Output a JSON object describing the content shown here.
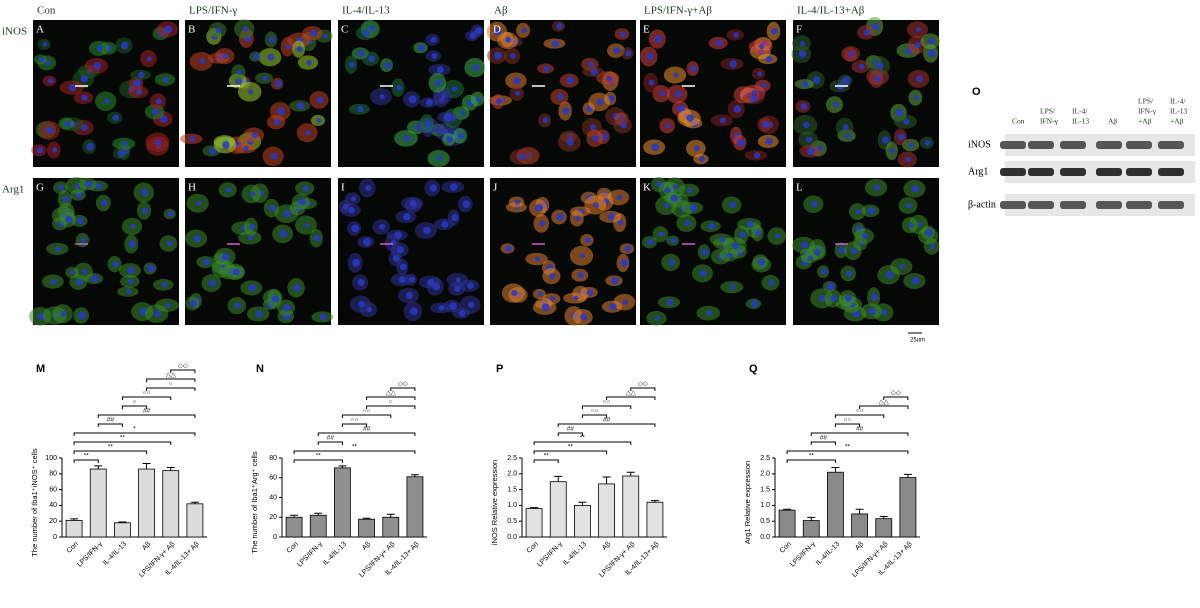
{
  "figure": {
    "columns": [
      "Con",
      "LPS/IFN-γ",
      "IL-4/IL-13",
      "Aβ",
      "LPS/IFN-γ+Aβ",
      "IL-4/IL-13+Aβ"
    ],
    "rows": [
      "iNOS",
      "Arg1"
    ],
    "panel_letters": [
      "A",
      "B",
      "C",
      "D",
      "E",
      "F",
      "G",
      "H",
      "I",
      "J",
      "K",
      "L"
    ],
    "blot": {
      "letter": "O",
      "lanes": [
        [
          "Con"
        ],
        [
          "LPS/",
          "IFN-γ"
        ],
        [
          "IL-4/",
          "IL-13"
        ],
        [
          "Aβ"
        ],
        [
          "LPS/",
          "IFN-γ",
          "+Aβ"
        ],
        [
          "IL-4/",
          "IL-13",
          "+Aβ"
        ]
      ],
      "rows": [
        "iNOS",
        "Arg1",
        "β-actin"
      ]
    },
    "scale_bar": "25um"
  },
  "chart_data": [
    {
      "type": "bar",
      "letter": "M",
      "ylabel": "The number of Iba1⁺iNOS⁺ cells",
      "categories": [
        "Con",
        "LPS/IFN-γ",
        "IL-4/IL-13",
        "Aβ",
        "LPS/IFN-γ+ Aβ",
        "IL-4/IL-13+ Aβ"
      ],
      "values": [
        21,
        86,
        18,
        86,
        84,
        42
      ],
      "errors": [
        2,
        4,
        1,
        7,
        4,
        2
      ],
      "ylim": [
        0,
        100
      ],
      "yticks": [
        0,
        20,
        40,
        60,
        80,
        100
      ],
      "color": "#dcdcdc",
      "comparisons": [
        {
          "label": "**",
          "pair": [
            "Con",
            "LPS/IFN-γ"
          ]
        },
        {
          "label": "**",
          "pair": [
            "Con",
            "Aβ"
          ]
        },
        {
          "label": "**",
          "pair": [
            "Con",
            "LPS/IFN-γ+ Aβ"
          ]
        },
        {
          "label": "*",
          "pair": [
            "Con",
            "IL-4/IL-13+ Aβ"
          ]
        },
        {
          "label": "##",
          "pair": [
            "LPS/IFN-γ",
            "IL-4/IL-13"
          ]
        },
        {
          "label": "##",
          "pair": [
            "LPS/IFN-γ",
            "IL-4/IL-13+ Aβ"
          ]
        },
        {
          "label": "○",
          "pair": [
            "IL-4/IL-13",
            "Aβ"
          ]
        },
        {
          "label": "○○",
          "pair": [
            "IL-4/IL-13",
            "LPS/IFN-γ+ Aβ"
          ]
        },
        {
          "label": "○",
          "pair": [
            "Aβ",
            "IL-4/IL-13+ Aβ"
          ]
        },
        {
          "label": "△△",
          "pair": [
            "Aβ",
            "IL-4/IL-13+ Aβ"
          ]
        },
        {
          "label": "◇◇",
          "pair": [
            "LPS/IFN-γ+ Aβ",
            "IL-4/IL-13+ Aβ"
          ]
        }
      ]
    },
    {
      "type": "bar",
      "letter": "N",
      "ylabel": "The number of Iba1⁺Arg⁺ cells",
      "categories": [
        "Con",
        "LPS/IFN-γ",
        "IL-4/IL-13",
        "Aβ",
        "LPS/IFN-γ+ Aβ",
        "IL-4/IL-13+ Aβ"
      ],
      "values": [
        20,
        22,
        70,
        18,
        20,
        61
      ],
      "errors": [
        2,
        2,
        2,
        1,
        3,
        2
      ],
      "ylim": [
        0,
        80
      ],
      "yticks": [
        0,
        20,
        40,
        60,
        80
      ],
      "color": "#8f8f8f",
      "comparisons": [
        {
          "label": "**",
          "pair": [
            "Con",
            "IL-4/IL-13"
          ]
        },
        {
          "label": "**",
          "pair": [
            "Con",
            "IL-4/IL-13+ Aβ"
          ]
        },
        {
          "label": "##",
          "pair": [
            "LPS/IFN-γ",
            "IL-4/IL-13"
          ]
        },
        {
          "label": "##",
          "pair": [
            "LPS/IFN-γ",
            "IL-4/IL-13+ Aβ"
          ]
        },
        {
          "label": "○○",
          "pair": [
            "IL-4/IL-13",
            "Aβ"
          ]
        },
        {
          "label": "○○",
          "pair": [
            "IL-4/IL-13",
            "LPS/IFN-γ+ Aβ"
          ]
        },
        {
          "label": "○",
          "pair": [
            "Aβ",
            "IL-4/IL-13+ Aβ"
          ]
        },
        {
          "label": "△△",
          "pair": [
            "Aβ",
            "IL-4/IL-13+ Aβ"
          ]
        },
        {
          "label": "◇◇",
          "pair": [
            "LPS/IFN-γ+ Aβ",
            "IL-4/IL-13+ Aβ"
          ]
        }
      ]
    },
    {
      "type": "bar",
      "letter": "P",
      "ylabel": "iNOS Relative expression",
      "categories": [
        "Con",
        "LPS/IFN-γ",
        "IL-4/IL-13",
        "Aβ",
        "LPS/IFN-γ+ Aβ",
        "IL-4/IL-13+ Aβ"
      ],
      "values": [
        0.9,
        1.75,
        1.0,
        1.68,
        1.93,
        1.1
      ],
      "errors": [
        0.03,
        0.17,
        0.1,
        0.22,
        0.12,
        0.05
      ],
      "ylim": [
        0,
        2.5
      ],
      "yticks": [
        {
          "value": 0,
          "label": "0.0"
        },
        0.5,
        {
          "value": 1,
          "label": "1.0"
        },
        1.5,
        {
          "value": 2,
          "label": "2.0"
        },
        2.5
      ],
      "color": "#e2e2e2",
      "comparisons": [
        {
          "label": "**",
          "pair": [
            "Con",
            "LPS/IFN-γ"
          ]
        },
        {
          "label": "**",
          "pair": [
            "Con",
            "Aβ"
          ]
        },
        {
          "label": "**",
          "pair": [
            "Con",
            "LPS/IFN-γ+ Aβ"
          ]
        },
        {
          "label": "##",
          "pair": [
            "LPS/IFN-γ",
            "IL-4/IL-13"
          ]
        },
        {
          "label": "##",
          "pair": [
            "LPS/IFN-γ",
            "IL-4/IL-13+ Aβ"
          ]
        },
        {
          "label": "○○",
          "pair": [
            "IL-4/IL-13",
            "Aβ"
          ]
        },
        {
          "label": "○○",
          "pair": [
            "IL-4/IL-13",
            "LPS/IFN-γ+ Aβ"
          ]
        },
        {
          "label": "△△",
          "pair": [
            "Aβ",
            "IL-4/IL-13+ Aβ"
          ]
        },
        {
          "label": "◇◇",
          "pair": [
            "LPS/IFN-γ+ Aβ",
            "IL-4/IL-13+ Aβ"
          ]
        }
      ]
    },
    {
      "type": "bar",
      "letter": "Q",
      "ylabel": "Arg1 Relative expression",
      "categories": [
        "Con",
        "LPS/IFN-γ",
        "IL-4/IL-13",
        "Aβ",
        "LPS/IFN-γ+ Aβ",
        "IL-4/IL-13+ Aβ"
      ],
      "values": [
        0.85,
        0.52,
        2.05,
        0.73,
        0.58,
        1.88
      ],
      "errors": [
        0.03,
        0.1,
        0.15,
        0.15,
        0.07,
        0.1
      ],
      "ylim": [
        0,
        2.5
      ],
      "yticks": [
        {
          "value": 0,
          "label": "0.0"
        },
        0.5,
        {
          "value": 1,
          "label": "1.0"
        },
        1.5,
        {
          "value": 2,
          "label": "2.0"
        },
        2.5
      ],
      "color": "#8a8a8a",
      "comparisons": [
        {
          "label": "**",
          "pair": [
            "Con",
            "IL-4/IL-13"
          ]
        },
        {
          "label": "**",
          "pair": [
            "Con",
            "IL-4/IL-13+ Aβ"
          ]
        },
        {
          "label": "##",
          "pair": [
            "LPS/IFN-γ",
            "IL-4/IL-13"
          ]
        },
        {
          "label": "##",
          "pair": [
            "LPS/IFN-γ",
            "IL-4/IL-13+ Aβ"
          ]
        },
        {
          "label": "○○",
          "pair": [
            "IL-4/IL-13",
            "Aβ"
          ]
        },
        {
          "label": "○○",
          "pair": [
            "IL-4/IL-13",
            "LPS/IFN-γ+ Aβ"
          ]
        },
        {
          "label": "△△",
          "pair": [
            "Aβ",
            "IL-4/IL-13+ Aβ"
          ]
        },
        {
          "label": "◇◇",
          "pair": [
            "LPS/IFN-γ+ Aβ",
            "IL-4/IL-13+ Aβ"
          ]
        }
      ]
    }
  ]
}
